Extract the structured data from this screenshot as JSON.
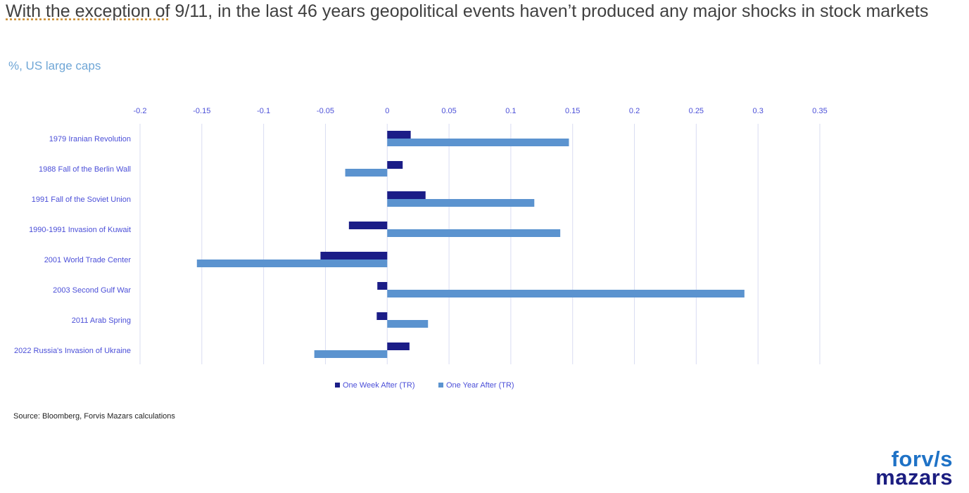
{
  "title_parts": [
    "With the exception of",
    " 9/11, in the last 46 years geopolitical events haven’t produced any major shocks in stock markets"
  ],
  "subtitle": "%, US large caps",
  "source": "Source: Bloomberg, Forvis Mazars calculations",
  "logo": {
    "line1": "forv/s",
    "line2": "mazars"
  },
  "chart_data": {
    "type": "bar",
    "orientation": "horizontal",
    "categories": [
      "1979 Iranian Revolution",
      "1988 Fall of the Berlin Wall",
      "1991 Fall of the Soviet Union",
      "1990-1991 Invasion of Kuwait",
      "2001 World Trade Center",
      "2003 Second Gulf War",
      "2011 Arab Spring",
      "2022 Russia's Invasion of Ukraine"
    ],
    "series": [
      {
        "name": "One Week After (TR)",
        "color": "#1b1d87",
        "values": [
          0.019,
          0.0125,
          0.031,
          -0.031,
          -0.054,
          -0.008,
          -0.0085,
          0.018
        ]
      },
      {
        "name": "One Year After (TR)",
        "color": "#5b93cf",
        "values": [
          0.147,
          -0.034,
          0.119,
          0.14,
          -0.154,
          0.289,
          0.033,
          -0.059
        ]
      }
    ],
    "xlim": [
      -0.2,
      0.35
    ],
    "ticks": [
      "-0.2",
      "-0.15",
      "-0.1",
      "-0.05",
      "0",
      "0.05",
      "0.1",
      "0.15",
      "0.2",
      "0.25",
      "0.3",
      "0.35"
    ],
    "grid": true,
    "legend": "bottom"
  }
}
